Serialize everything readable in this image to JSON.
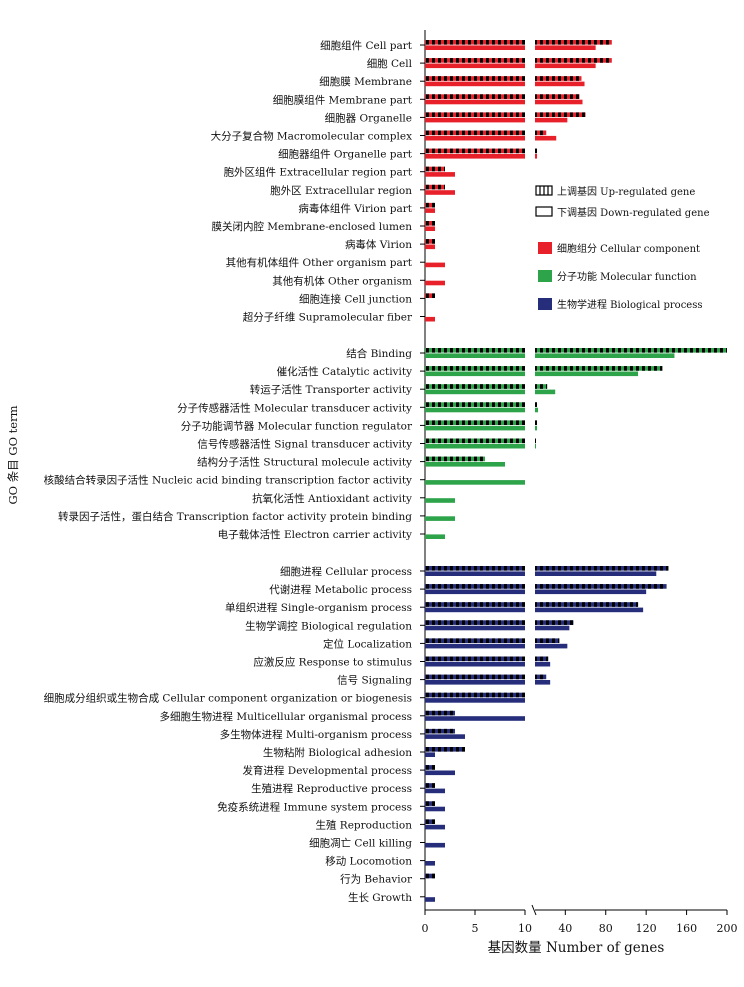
{
  "chart_data": {
    "type": "bar",
    "orientation": "horizontal",
    "xlabel": "基因数量 Number of genes",
    "ylabel": "GO 条目 GO term",
    "x_axis": {
      "broken": true,
      "segment1": {
        "range": [
          0,
          10
        ],
        "ticks": [
          "0",
          "5",
          "10"
        ]
      },
      "segment2": {
        "range": [
          10,
          200
        ],
        "ticks": [
          "40",
          "80",
          "120",
          "160",
          "200"
        ]
      }
    },
    "grid": false,
    "legend_position": "right",
    "legend": [
      {
        "label": "上调基因 Up-regulated gene",
        "kind": "up"
      },
      {
        "label": "下调基因 Down-regulated gene",
        "kind": "down"
      },
      {
        "label": "细胞组分 Cellular component",
        "group": "cellular_component",
        "color": "#e8202a"
      },
      {
        "label": "分子功能 Molecular function",
        "group": "molecular_function",
        "color": "#2ea44a"
      },
      {
        "label": "生物学进程 Biological process",
        "group": "biological_process",
        "color": "#262d7a"
      }
    ],
    "series": [
      {
        "name": "上调基因 Up-regulated gene"
      },
      {
        "name": "下调基因 Down-regulated gene"
      }
    ],
    "groups": [
      {
        "key": "cellular_component",
        "color": "#e8202a",
        "items": [
          {
            "label": "细胞组件 Cell part",
            "up": 86,
            "down": 70
          },
          {
            "label": "细胞 Cell",
            "up": 86,
            "down": 70
          },
          {
            "label": "细胞膜 Membrane",
            "up": 56,
            "down": 59
          },
          {
            "label": "细胞膜组件 Membrane part",
            "up": 54,
            "down": 57
          },
          {
            "label": "细胞器 Organelle",
            "up": 60,
            "down": 42
          },
          {
            "label": "大分子复合物 Macromolecular complex",
            "up": 21,
            "down": 31
          },
          {
            "label": "细胞器组件 Organelle part",
            "up": 12,
            "down": 12
          },
          {
            "label": "胞外区组件 Extracellular region part",
            "up": 2,
            "down": 3
          },
          {
            "label": "胞外区 Extracellular region",
            "up": 2,
            "down": 3
          },
          {
            "label": "病毒体组件 Virion part",
            "up": 1,
            "down": 1
          },
          {
            "label": "膜关闭内腔 Membrane-enclosed lumen",
            "up": 1,
            "down": 1
          },
          {
            "label": "病毒体 Virion",
            "up": 1,
            "down": 1
          },
          {
            "label": "其他有机体组件 Other organism part",
            "up": 0,
            "down": 2
          },
          {
            "label": "其他有机体 Other organism",
            "up": 0,
            "down": 2
          },
          {
            "label": "细胞连接 Cell junction",
            "up": 1,
            "down": 0
          },
          {
            "label": "超分子纤维 Supramolecular fiber",
            "up": 0,
            "down": 1
          }
        ]
      },
      {
        "key": "molecular_function",
        "color": "#2ea44a",
        "items": [
          {
            "label": "结合 Binding",
            "up": 200,
            "down": 148
          },
          {
            "label": "催化活性 Catalytic activity",
            "up": 136,
            "down": 112
          },
          {
            "label": "转运子活性 Transporter activity",
            "up": 22,
            "down": 30
          },
          {
            "label": "分子传感器活性 Molecular transducer activity",
            "up": 12,
            "down": 13
          },
          {
            "label": "分子功能调节器 Molecular function regulator",
            "up": 12,
            "down": 12
          },
          {
            "label": "信号传感器活性 Signal transducer activity",
            "up": 10.5,
            "down": 11
          },
          {
            "label": "结构分子活性 Structural molecule activity",
            "up": 6,
            "down": 8
          },
          {
            "label": "核酸结合转录因子活性 Nucleic acid binding transcription factor activity",
            "up": 0,
            "down": 10
          },
          {
            "label": "抗氧化活性 Antioxidant activity",
            "up": 0,
            "down": 3
          },
          {
            "label": "转录因子活性，蛋白结合 Transcription factor activity protein binding",
            "up": 0,
            "down": 3
          },
          {
            "label": "电子载体活性 Electron carrier activity",
            "up": 0,
            "down": 2
          }
        ]
      },
      {
        "key": "biological_process",
        "color": "#262d7a",
        "items": [
          {
            "label": "细胞进程 Cellular process",
            "up": 142,
            "down": 130
          },
          {
            "label": "代谢进程 Metabolic process",
            "up": 140,
            "down": 120
          },
          {
            "label": "单组织进程 Single-organism process",
            "up": 112,
            "down": 117
          },
          {
            "label": "生物学调控 Biological regulation",
            "up": 48,
            "down": 44
          },
          {
            "label": "定位 Localization",
            "up": 34,
            "down": 42
          },
          {
            "label": "应激反应 Response to stimulus",
            "up": 23,
            "down": 25
          },
          {
            "label": "信号 Signaling",
            "up": 21,
            "down": 25
          },
          {
            "label": "细胞成分组织或生物合成 Cellular component organization or biogenesis",
            "up": 10,
            "down": 10
          },
          {
            "label": "多细胞生物进程 Multicellular organismal process",
            "up": 3,
            "down": 10
          },
          {
            "label": "多生物体进程 Multi-organism process",
            "up": 3,
            "down": 4
          },
          {
            "label": "生物粘附 Biological adhesion",
            "up": 4,
            "down": 1
          },
          {
            "label": "发育进程 Developmental process",
            "up": 1,
            "down": 3
          },
          {
            "label": "生殖进程 Reproductive process",
            "up": 1,
            "down": 2
          },
          {
            "label": "免疫系统进程 Immune system process",
            "up": 1,
            "down": 2
          },
          {
            "label": "生殖 Reproduction",
            "up": 1,
            "down": 2
          },
          {
            "label": "细胞凋亡 Cell killing",
            "up": 0,
            "down": 2
          },
          {
            "label": "移动 Locomotion",
            "up": 0,
            "down": 1
          },
          {
            "label": "行为 Behavior",
            "up": 1,
            "down": 0
          },
          {
            "label": "生长 Growth",
            "up": 0,
            "down": 1
          }
        ]
      }
    ]
  }
}
